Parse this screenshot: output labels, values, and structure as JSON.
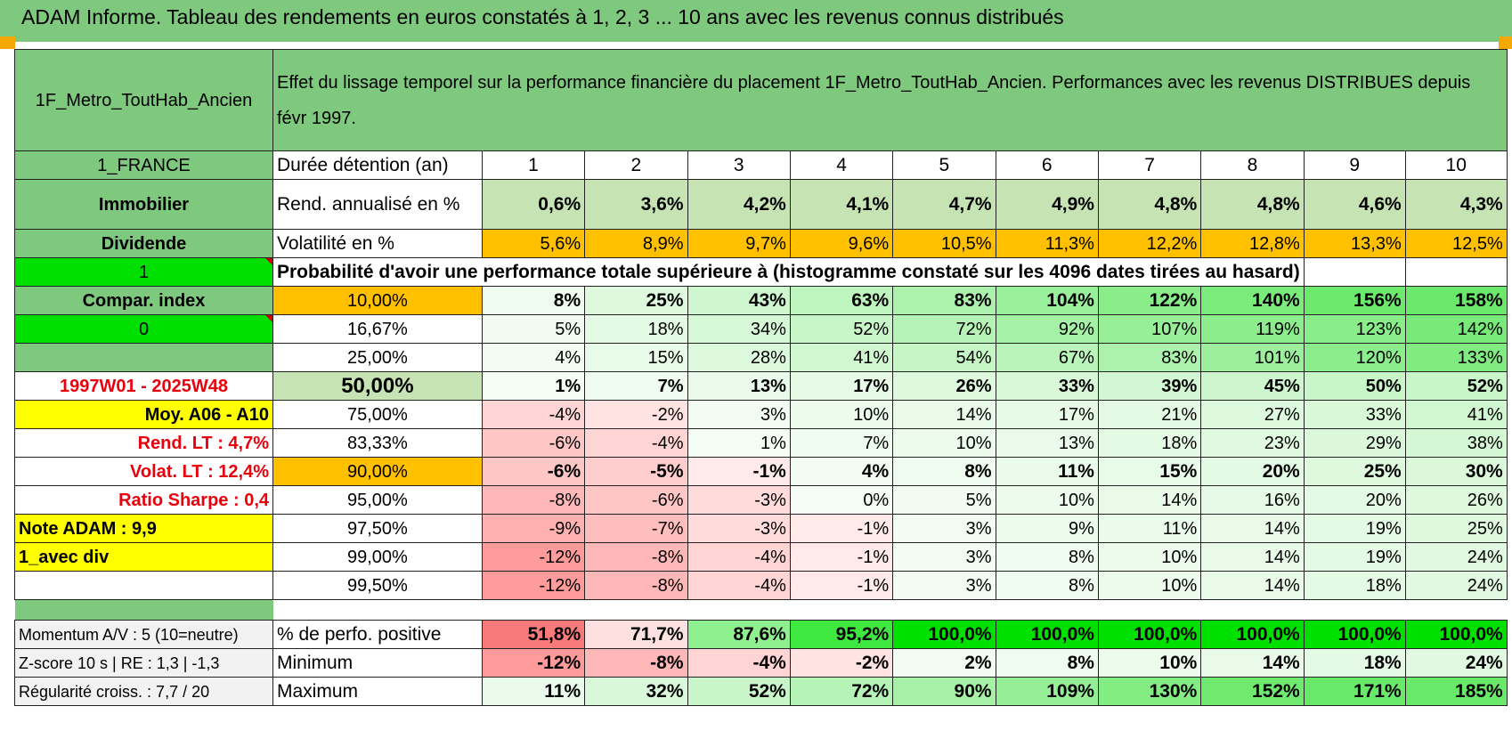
{
  "title": "ADAM Informe. Tableau des rendements en euros constatés à 1, 2, 3 ... 10 ans avec les revenus connus distribués",
  "header": {
    "fund": "1F_Metro_ToutHab_Ancien",
    "description": "Effet du lissage temporel sur la performance financière du placement 1F_Metro_ToutHab_Ancien. Performances avec les revenus DISTRIBUES depuis févr 1997."
  },
  "side": {
    "country": "1_FRANCE",
    "asset_class": "Immobilier",
    "income": "Dividende",
    "flag1": "1",
    "compar_index": "Compar. index",
    "flag0": "0",
    "period": "1997W01 - 2025W48",
    "moy": "Moy. A06 - A10",
    "rend_lt": "Rend. LT :    4,7%",
    "volat_lt": "Volat. LT :    12,4%",
    "sharpe": "Ratio Sharpe :     0,4",
    "note": "Note ADAM : 9,9",
    "avec_div": "1_avec div",
    "momentum": "Momentum A/V : 5 (10=neutre)",
    "zscore": "Z-score 10 s | RE : 1,3  |  -1,3",
    "regularite": "Régularité croiss. : 7,7 / 20"
  },
  "duration_label": "Durée détention (an)",
  "years": [
    "1",
    "2",
    "3",
    "4",
    "5",
    "6",
    "7",
    "8",
    "9",
    "10"
  ],
  "rend": {
    "label": "Rend. annualisé en %",
    "values": [
      "0,6%",
      "3,6%",
      "4,2%",
      "4,1%",
      "4,7%",
      "4,9%",
      "4,8%",
      "4,8%",
      "4,6%",
      "4,3%"
    ]
  },
  "vol": {
    "label": "Volatilité en %",
    "values": [
      "5,6%",
      "8,9%",
      "9,7%",
      "9,6%",
      "10,5%",
      "11,3%",
      "12,2%",
      "12,8%",
      "13,3%",
      "12,5%"
    ]
  },
  "prob_title": "Probabilité d'avoir une performance totale supérieure à (histogramme constaté sur les 4096 dates tirées au hasard)",
  "prob_rows": [
    {
      "p": "10,00%",
      "v": [
        "8%",
        "25%",
        "43%",
        "63%",
        "83%",
        "104%",
        "122%",
        "140%",
        "156%",
        "158%"
      ]
    },
    {
      "p": "16,67%",
      "v": [
        "5%",
        "18%",
        "34%",
        "52%",
        "72%",
        "92%",
        "107%",
        "119%",
        "123%",
        "142%"
      ]
    },
    {
      "p": "25,00%",
      "v": [
        "4%",
        "15%",
        "28%",
        "41%",
        "54%",
        "67%",
        "83%",
        "101%",
        "120%",
        "133%"
      ]
    },
    {
      "p": "50,00%",
      "v": [
        "1%",
        "7%",
        "13%",
        "17%",
        "26%",
        "33%",
        "39%",
        "45%",
        "50%",
        "52%"
      ]
    },
    {
      "p": "75,00%",
      "v": [
        "-4%",
        "-2%",
        "3%",
        "10%",
        "14%",
        "17%",
        "21%",
        "27%",
        "33%",
        "41%"
      ]
    },
    {
      "p": "83,33%",
      "v": [
        "-6%",
        "-4%",
        "1%",
        "7%",
        "10%",
        "13%",
        "18%",
        "23%",
        "29%",
        "38%"
      ]
    },
    {
      "p": "90,00%",
      "v": [
        "-6%",
        "-5%",
        "-1%",
        "4%",
        "8%",
        "11%",
        "15%",
        "20%",
        "25%",
        "30%"
      ]
    },
    {
      "p": "95,00%",
      "v": [
        "-8%",
        "-6%",
        "-3%",
        "0%",
        "5%",
        "10%",
        "14%",
        "16%",
        "20%",
        "26%"
      ]
    },
    {
      "p": "97,50%",
      "v": [
        "-9%",
        "-7%",
        "-3%",
        "-1%",
        "3%",
        "9%",
        "11%",
        "14%",
        "19%",
        "25%"
      ]
    },
    {
      "p": "99,00%",
      "v": [
        "-12%",
        "-8%",
        "-4%",
        "-1%",
        "3%",
        "8%",
        "10%",
        "14%",
        "19%",
        "24%"
      ]
    },
    {
      "p": "99,50%",
      "v": [
        "-12%",
        "-8%",
        "-4%",
        "-1%",
        "3%",
        "8%",
        "10%",
        "14%",
        "18%",
        "24%"
      ]
    }
  ],
  "stats": [
    {
      "label": "% de perfo. positive",
      "v": [
        "51,8%",
        "71,7%",
        "87,6%",
        "95,2%",
        "100,0%",
        "100,0%",
        "100,0%",
        "100,0%",
        "100,0%",
        "100,0%"
      ]
    },
    {
      "label": "Minimum",
      "v": [
        "-12%",
        "-8%",
        "-4%",
        "-2%",
        "2%",
        "8%",
        "10%",
        "14%",
        "18%",
        "24%"
      ]
    },
    {
      "label": "Maximum",
      "v": [
        "11%",
        "32%",
        "52%",
        "72%",
        "90%",
        "109%",
        "130%",
        "152%",
        "171%",
        "185%"
      ]
    }
  ],
  "colors": {
    "header_green": "#7fc97f",
    "light_green": "#c6e3b4",
    "orange": "#ffc000",
    "bright_green": "#00e000",
    "yellow": "#ffff00",
    "red_text": "#e8000d"
  }
}
